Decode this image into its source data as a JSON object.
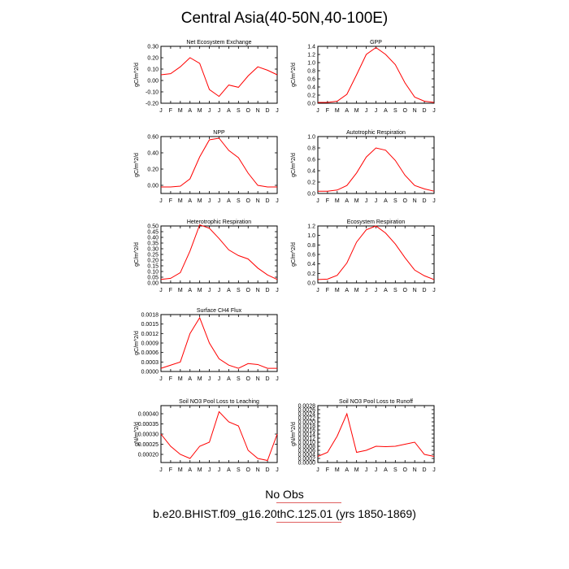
{
  "title": "Central Asia(40-50N,40-100E)",
  "legend": {
    "obs_label": "No Obs",
    "case_label": "b.e20.BHIST.f09_g16.20thC.125.01 (yrs 1850-1869)",
    "line_color": "#e06060"
  },
  "series_color": "#ff0000",
  "chart_data": [
    {
      "type": "line",
      "title": "Net Ecosystem Exchange",
      "ylabel": "gC/m^2/d",
      "categories": [
        "J",
        "F",
        "M",
        "A",
        "M",
        "J",
        "J",
        "A",
        "S",
        "O",
        "N",
        "D",
        "J"
      ],
      "values": [
        0.05,
        0.06,
        0.12,
        0.2,
        0.15,
        -0.08,
        -0.14,
        -0.04,
        -0.06,
        0.04,
        0.12,
        0.09,
        0.05
      ],
      "ylim": [
        -0.2,
        0.3
      ],
      "yticks": [
        "-0.20",
        "-0.10",
        "0.00",
        "0.10",
        "0.20",
        "0.30"
      ]
    },
    {
      "type": "line",
      "title": "GPP",
      "ylabel": "gC/m^2/d",
      "categories": [
        "J",
        "F",
        "M",
        "A",
        "M",
        "J",
        "J",
        "A",
        "S",
        "O",
        "N",
        "D",
        "J"
      ],
      "values": [
        0.02,
        0.02,
        0.05,
        0.22,
        0.7,
        1.2,
        1.37,
        1.2,
        0.95,
        0.5,
        0.15,
        0.05,
        0.02
      ],
      "ylim": [
        0,
        1.4
      ],
      "yticks": [
        "0.0",
        "0.2",
        "0.4",
        "0.6",
        "0.8",
        "1.0",
        "1.2",
        "1.4"
      ]
    },
    {
      "type": "line",
      "title": "NPP",
      "ylabel": "gC/m^2/d",
      "categories": [
        "J",
        "F",
        "M",
        "A",
        "M",
        "J",
        "J",
        "A",
        "S",
        "O",
        "N",
        "D",
        "J"
      ],
      "values": [
        -0.02,
        -0.02,
        -0.01,
        0.08,
        0.35,
        0.56,
        0.58,
        0.43,
        0.34,
        0.15,
        0.0,
        -0.02,
        -0.02
      ],
      "ylim": [
        -0.1,
        0.6
      ],
      "yticks": [
        "0.00",
        "0.20",
        "0.40",
        "0.60"
      ]
    },
    {
      "type": "line",
      "title": "Autotrophic Respiration",
      "ylabel": "gC/m^2/d",
      "categories": [
        "J",
        "F",
        "M",
        "A",
        "M",
        "J",
        "J",
        "A",
        "S",
        "O",
        "N",
        "D",
        "J"
      ],
      "values": [
        0.04,
        0.04,
        0.06,
        0.14,
        0.36,
        0.64,
        0.8,
        0.76,
        0.58,
        0.32,
        0.14,
        0.08,
        0.04
      ],
      "ylim": [
        0,
        1.0
      ],
      "yticks": [
        "0.0",
        "0.2",
        "0.4",
        "0.6",
        "0.8",
        "1.0"
      ]
    },
    {
      "type": "line",
      "title": "Heterotrophic Respiration",
      "ylabel": "gC/m^2/d",
      "categories": [
        "J",
        "F",
        "M",
        "A",
        "M",
        "J",
        "J",
        "A",
        "S",
        "O",
        "N",
        "D",
        "J"
      ],
      "values": [
        0.03,
        0.04,
        0.09,
        0.28,
        0.51,
        0.48,
        0.39,
        0.29,
        0.24,
        0.21,
        0.13,
        0.07,
        0.03
      ],
      "ylim": [
        0,
        0.5
      ],
      "yticks": [
        "0.00",
        "0.05",
        "0.10",
        "0.15",
        "0.20",
        "0.25",
        "0.30",
        "0.35",
        "0.40",
        "0.45",
        "0.50"
      ]
    },
    {
      "type": "line",
      "title": "Ecosystem Respiration",
      "ylabel": "gC/m^2/d",
      "categories": [
        "J",
        "F",
        "M",
        "A",
        "M",
        "J",
        "J",
        "A",
        "S",
        "O",
        "N",
        "D",
        "J"
      ],
      "values": [
        0.07,
        0.08,
        0.16,
        0.42,
        0.86,
        1.12,
        1.2,
        1.05,
        0.82,
        0.53,
        0.27,
        0.15,
        0.07
      ],
      "ylim": [
        0,
        1.2
      ],
      "yticks": [
        "0.0",
        "0.2",
        "0.4",
        "0.6",
        "0.8",
        "1.0",
        "1.2"
      ]
    },
    {
      "type": "line",
      "title": "Surface CH4 Flux",
      "ylabel": "gC/m^2/d",
      "categories": [
        "J",
        "F",
        "M",
        "A",
        "M",
        "J",
        "J",
        "A",
        "S",
        "O",
        "N",
        "D",
        "J"
      ],
      "values": [
        0.0001,
        0.0002,
        0.0003,
        0.0012,
        0.0017,
        0.0009,
        0.0004,
        0.0002,
        0.0001,
        0.00025,
        0.00022,
        0.0001,
        0.0001
      ],
      "ylim": [
        0,
        0.0018
      ],
      "yticks": [
        "0.0000",
        "0.0003",
        "0.0006",
        "0.0009",
        "0.0012",
        "0.0015",
        "0.0018"
      ]
    },
    {
      "type": "line",
      "title": "Soil NO3 Pool Loss to Leaching",
      "ylabel": "gN/m^2/d",
      "categories": [
        "J",
        "F",
        "M",
        "A",
        "M",
        "J",
        "J",
        "A",
        "S",
        "O",
        "N",
        "D",
        "J"
      ],
      "values": [
        0.0003,
        0.00024,
        0.0002,
        0.00018,
        0.00024,
        0.00026,
        0.00041,
        0.00036,
        0.00034,
        0.00022,
        0.00018,
        0.00017,
        0.0003
      ],
      "ylim": [
        0.00016,
        0.00044
      ],
      "yticks": [
        "0.00020",
        "0.00025",
        "0.00030",
        "0.00035",
        "0.00040"
      ]
    },
    {
      "type": "line",
      "title": "Soil NO3 Pool Loss to Runoff",
      "ylabel": "gN/m^2/d",
      "categories": [
        "J",
        "F",
        "M",
        "A",
        "M",
        "J",
        "J",
        "A",
        "S",
        "O",
        "N",
        "D",
        "J"
      ],
      "values": [
        0.0003,
        0.0005,
        0.0013,
        0.0024,
        0.0005,
        0.0006,
        0.0008,
        0.00078,
        0.0008,
        0.0009,
        0.001,
        0.0004,
        0.0003
      ],
      "ylim": [
        0,
        0.0028
      ],
      "yticks": [
        "0.0000",
        "0.0002",
        "0.0004",
        "0.0006",
        "0.0008",
        "0.0010",
        "0.0012",
        "0.0014",
        "0.0016",
        "0.0018",
        "0.0020",
        "0.0022",
        "0.0024",
        "0.0026",
        "0.0028"
      ]
    }
  ]
}
